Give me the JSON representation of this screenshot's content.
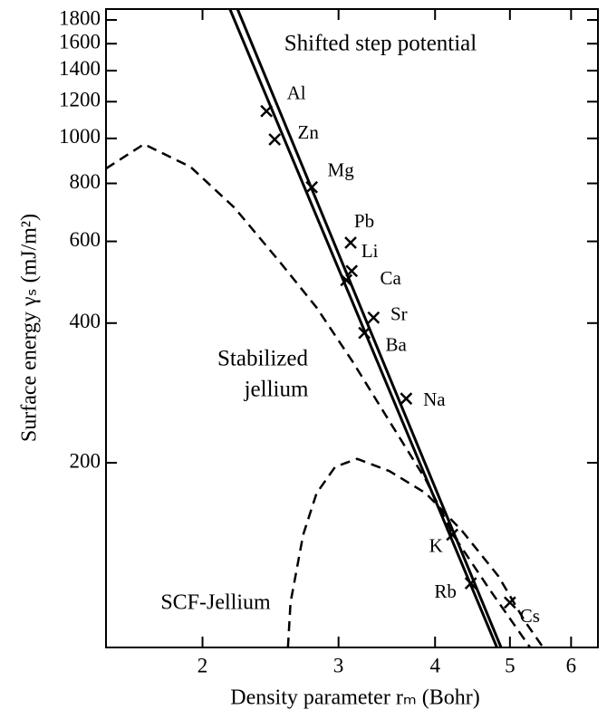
{
  "chart_data": {
    "type": "line",
    "log_x": true,
    "log_y": true,
    "xlabel": "Density parameter rₘ (Bohr)",
    "ylabel": "Surface energy γₛ (mJ/m²)",
    "xlim": [
      1.5,
      6.5
    ],
    "ylim": [
      80,
      1900
    ],
    "xticks": [
      2,
      3,
      4,
      5,
      6
    ],
    "yticks": [
      200,
      400,
      600,
      800,
      1000,
      1200,
      1400,
      1600,
      1800
    ],
    "annotations": [
      "Shifted step potential",
      "Stabilized",
      "jellium",
      "SCF-Jellium"
    ],
    "series": [
      {
        "style": "solid",
        "color": "#000000",
        "x": [
          2.17,
          4.81
        ],
        "values": [
          1900,
          80
        ]
      },
      {
        "style": "solid",
        "color": "#000000",
        "x": [
          2.22,
          4.87
        ],
        "values": [
          1900,
          80
        ]
      },
      {
        "style": "dashed",
        "color": "#000000",
        "x": [
          1.5,
          1.68,
          1.93,
          2.2,
          2.52,
          2.81,
          3.13,
          3.49,
          3.89,
          4.22,
          4.7,
          5.31
        ],
        "values": [
          861,
          972,
          868,
          709,
          541,
          432,
          330,
          246,
          184,
          140,
          107,
          80
        ]
      },
      {
        "style": "dashed",
        "color": "#000000",
        "x": [
          2.58,
          2.6,
          2.7,
          2.81,
          2.97,
          3.17,
          3.49,
          3.89,
          4.33,
          4.83,
          5.23,
          5.52
        ],
        "values": [
          80,
          100,
          140,
          172,
          196,
          204,
          192,
          172,
          143,
          114,
          91,
          80
        ]
      },
      {
        "style": "points",
        "color": "#000000",
        "labels": [
          "Al",
          "Zn",
          "Mg",
          "Pb",
          "Li",
          "Ca",
          "Sr",
          "Ba",
          "Na",
          "K",
          "Rb",
          "Cs"
        ],
        "x": [
          2.42,
          2.48,
          2.77,
          3.11,
          3.12,
          3.07,
          3.33,
          3.24,
          3.67,
          4.21,
          4.45,
          5.0
        ],
        "values": [
          1145,
          995,
          785,
          596,
          518,
          495,
          411,
          381,
          275,
          140,
          110,
          100
        ]
      }
    ]
  }
}
